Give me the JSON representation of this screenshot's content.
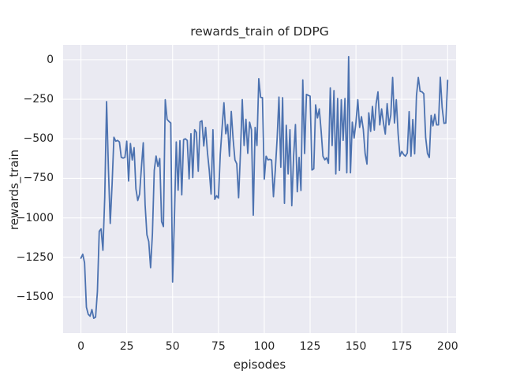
{
  "chart_data": {
    "type": "line",
    "title": "rewards_train of DDPG",
    "xlabel": "episodes",
    "ylabel": "rewards_train",
    "x_ticks": [
      0,
      25,
      50,
      75,
      100,
      125,
      150,
      175,
      200
    ],
    "y_ticks": [
      0,
      -250,
      -500,
      -750,
      -1000,
      -1250,
      -1500
    ],
    "xlim": [
      -9.7,
      204.6
    ],
    "ylim": [
      -1729,
      94
    ],
    "grid": true,
    "legend_position": "none",
    "colors": {
      "line": "#4c72b0",
      "plot_background": "#eaeaf2",
      "gridline": "#ffffff",
      "figure_background": "#ffffff",
      "text": "#262626"
    },
    "series": [
      {
        "name": "rewards_train",
        "x_start": 0,
        "x_step": 1,
        "values": [
          -1255,
          -1230,
          -1285,
          -1565,
          -1610,
          -1622,
          -1580,
          -1635,
          -1628,
          -1465,
          -1085,
          -1070,
          -1205,
          -870,
          -265,
          -690,
          -1035,
          -790,
          -490,
          -515,
          -510,
          -520,
          -617,
          -622,
          -618,
          -515,
          -767,
          -530,
          -634,
          -556,
          -817,
          -890,
          -850,
          -680,
          -525,
          -916,
          -1107,
          -1150,
          -1315,
          -1100,
          -700,
          -609,
          -675,
          -625,
          -1024,
          -1055,
          -253,
          -377,
          -390,
          -400,
          -1406,
          -1000,
          -520,
          -825,
          -512,
          -855,
          -505,
          -500,
          -510,
          -753,
          -468,
          -745,
          -443,
          -460,
          -705,
          -393,
          -386,
          -545,
          -428,
          -585,
          -700,
          -850,
          -443,
          -883,
          -860,
          -875,
          -600,
          -430,
          -272,
          -468,
          -410,
          -610,
          -327,
          -500,
          -633,
          -658,
          -873,
          -590,
          -252,
          -542,
          -377,
          -592,
          -395,
          -443,
          -983,
          -428,
          -542,
          -120,
          -238,
          -240,
          -755,
          -610,
          -633,
          -630,
          -635,
          -866,
          -700,
          -500,
          -236,
          -680,
          -240,
          -908,
          -415,
          -722,
          -443,
          -923,
          -610,
          -410,
          -835,
          -618,
          -827,
          -128,
          -593,
          -219,
          -225,
          -230,
          -697,
          -690,
          -285,
          -368,
          -311,
          -450,
          -610,
          -633,
          -620,
          -655,
          -178,
          -542,
          -195,
          -722,
          -245,
          -700,
          -253,
          -510,
          -245,
          -715,
          20,
          -715,
          -395,
          -495,
          -395,
          -253,
          -428,
          -360,
          -440,
          -593,
          -660,
          -336,
          -453,
          -295,
          -445,
          -278,
          -203,
          -412,
          -311,
          -400,
          -470,
          -278,
          -412,
          -350,
          -112,
          -400,
          -253,
          -470,
          -610,
          -580,
          -600,
          -610,
          -590,
          -328,
          -610,
          -378,
          -595,
          -228,
          -112,
          -200,
          -203,
          -215,
          -490,
          -593,
          -618,
          -352,
          -418,
          -345,
          -412,
          -412,
          -111,
          -302,
          -402,
          -400,
          -130
        ]
      }
    ]
  }
}
